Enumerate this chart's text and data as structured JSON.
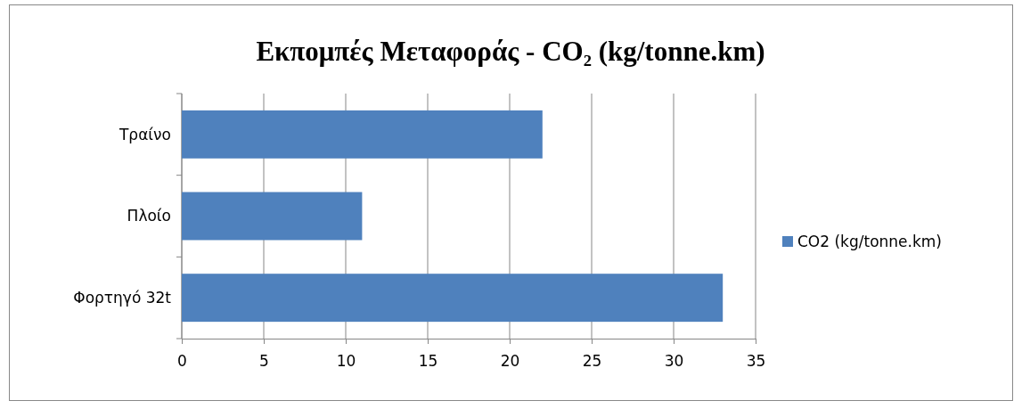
{
  "chart_data": {
    "type": "bar",
    "orientation": "horizontal",
    "title": "Εκπομπές  Μεταφοράς - CO₂ (kg/tonne.km)",
    "categories": [
      "Τραίνο",
      "Πλοίο",
      "Φορτηγό 32t"
    ],
    "series": [
      {
        "name": "CO2 (kg/tonne.km)",
        "color": "#4f81bd",
        "values": [
          22,
          11,
          33
        ]
      }
    ],
    "xlim": [
      0,
      35
    ],
    "xticks": [
      0,
      5,
      10,
      15,
      20,
      25,
      30,
      35
    ],
    "grid": "x",
    "legend": "right"
  }
}
